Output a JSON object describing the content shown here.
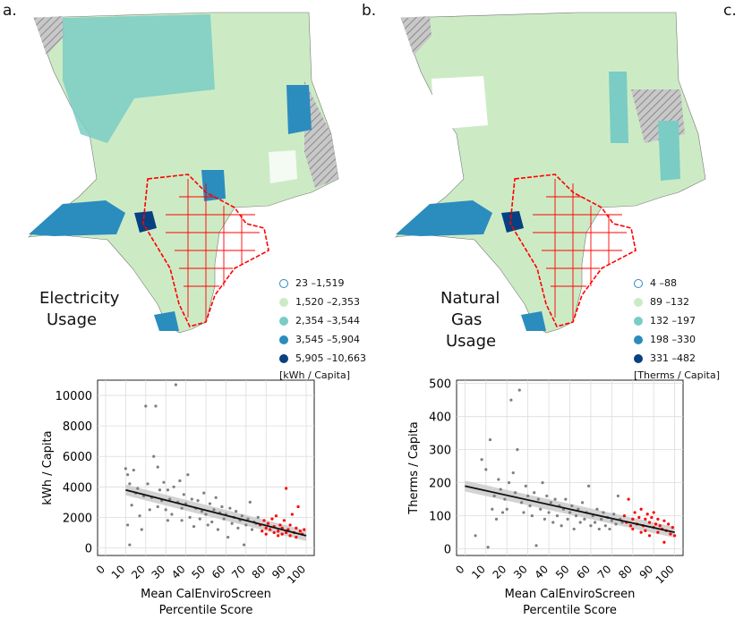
{
  "panels": {
    "a": {
      "letter": "a."
    },
    "b": {
      "letter": "b."
    },
    "c": {
      "letter": "c."
    }
  },
  "maps": [
    {
      "title_line1": "Electricity",
      "title_line2": "Usage",
      "legend": [
        {
          "label": "23 –1,519",
          "color": "#ffffff"
        },
        {
          "label": "1,520 –2,353",
          "color": "#ccebc5"
        },
        {
          "label": "2,354 –3,544",
          "color": "#7bccc4"
        },
        {
          "label": "3,545 –5,904",
          "color": "#2b8cbe"
        },
        {
          "label": "5,905 –10,663",
          "color": "#084081"
        }
      ],
      "unit": "[kWh / Capita]"
    },
    {
      "title_line1": "Natural",
      "title_line2": "Gas",
      "title_line3": "Usage",
      "legend": [
        {
          "label": "4 –88",
          "color": "#ffffff"
        },
        {
          "label": "89 –132",
          "color": "#ccebc5"
        },
        {
          "label": "132 –197",
          "color": "#7bccc4"
        },
        {
          "label": "198 –330",
          "color": "#2b8cbe"
        },
        {
          "label": "331 –482",
          "color": "#084081"
        }
      ],
      "unit": "[Therms / Capita]"
    }
  ],
  "colors": {
    "highlight": "#ff0000",
    "gray_point": "#7f7f7f",
    "fit_line": "#111111",
    "ci_band": "#c8c8c8",
    "nodata": "#b8b8b8"
  },
  "chart_data": [
    {
      "type": "scatter",
      "title": "",
      "xlabel": "Mean CalEnviroScreen Percentile Score",
      "xlabel_line1": "Mean CalEnviroScreen",
      "xlabel_line2": "Percentile Score",
      "ylabel": "kWh / Capita",
      "xlim": [
        -4,
        104
      ],
      "ylim": [
        -500,
        11000
      ],
      "xticks": [
        "0",
        "10",
        "20",
        "30",
        "40",
        "50",
        "60",
        "70",
        "80",
        "90",
        "100"
      ],
      "yticks": [
        "0",
        "2000",
        "4000",
        "6000",
        "8000",
        "10000"
      ],
      "fit_line": {
        "x": [
          10,
          100
        ],
        "y": [
          3800,
          800
        ]
      },
      "series": [
        {
          "name": "communities",
          "color": "#7f7f7f",
          "points": [
            [
              10,
              5200
            ],
            [
              11,
              4800
            ],
            [
              12,
              4200
            ],
            [
              11,
              1500
            ],
            [
              12,
              200
            ],
            [
              13,
              2800
            ],
            [
              14,
              5100
            ],
            [
              15,
              3600
            ],
            [
              16,
              3900
            ],
            [
              17,
              2100
            ],
            [
              18,
              1200
            ],
            [
              19,
              3400
            ],
            [
              20,
              9300
            ],
            [
              21,
              4200
            ],
            [
              22,
              2500
            ],
            [
              23,
              3300
            ],
            [
              24,
              6000
            ],
            [
              25,
              9300
            ],
            [
              26,
              5300
            ],
            [
              26,
              2700
            ],
            [
              27,
              3800
            ],
            [
              28,
              3100
            ],
            [
              29,
              4300
            ],
            [
              30,
              2500
            ],
            [
              31,
              3800
            ],
            [
              31,
              1800
            ],
            [
              32,
              3200
            ],
            [
              33,
              2200
            ],
            [
              34,
              4000
            ],
            [
              35,
              10700
            ],
            [
              36,
              3000
            ],
            [
              37,
              4400
            ],
            [
              38,
              2600
            ],
            [
              38,
              1800
            ],
            [
              39,
              3500
            ],
            [
              40,
              2900
            ],
            [
              41,
              4800
            ],
            [
              42,
              2000
            ],
            [
              43,
              3200
            ],
            [
              44,
              1400
            ],
            [
              45,
              2600
            ],
            [
              46,
              3100
            ],
            [
              47,
              1900
            ],
            [
              48,
              2400
            ],
            [
              49,
              3600
            ],
            [
              50,
              2200
            ],
            [
              51,
              1500
            ],
            [
              52,
              2900
            ],
            [
              53,
              1700
            ],
            [
              54,
              2500
            ],
            [
              55,
              3300
            ],
            [
              56,
              1200
            ],
            [
              57,
              2300
            ],
            [
              58,
              2700
            ],
            [
              59,
              1900
            ],
            [
              60,
              2200
            ],
            [
              61,
              700
            ],
            [
              62,
              2600
            ],
            [
              63,
              1600
            ],
            [
              64,
              2000
            ],
            [
              65,
              2400
            ],
            [
              66,
              1300
            ],
            [
              67,
              1800
            ],
            [
              68,
              2100
            ],
            [
              69,
              200
            ],
            [
              70,
              1500
            ],
            [
              71,
              1900
            ],
            [
              72,
              3000
            ],
            [
              73,
              1200
            ],
            [
              74,
              1700
            ],
            [
              75,
              1600
            ],
            [
              76,
              2000
            ]
          ]
        },
        {
          "name": "disadvantaged",
          "color": "#ff0000",
          "points": [
            [
              77,
              1500
            ],
            [
              78,
              1100
            ],
            [
              79,
              1800
            ],
            [
              80,
              1300
            ],
            [
              80,
              900
            ],
            [
              81,
              1600
            ],
            [
              82,
              1200
            ],
            [
              83,
              1900
            ],
            [
              84,
              1000
            ],
            [
              84,
              1400
            ],
            [
              85,
              2100
            ],
            [
              86,
              1100
            ],
            [
              86,
              800
            ],
            [
              87,
              1500
            ],
            [
              88,
              1300
            ],
            [
              88,
              900
            ],
            [
              89,
              1800
            ],
            [
              90,
              1000
            ],
            [
              90,
              3900
            ],
            [
              91,
              1200
            ],
            [
              92,
              800
            ],
            [
              92,
              1500
            ],
            [
              93,
              2200
            ],
            [
              94,
              1000
            ],
            [
              95,
              1300
            ],
            [
              95,
              700
            ],
            [
              96,
              2700
            ],
            [
              97,
              1100
            ],
            [
              98,
              900
            ],
            [
              99,
              1200
            ]
          ]
        }
      ]
    },
    {
      "type": "scatter",
      "title": "",
      "xlabel": "Mean CalEnviroScreen Percentile Score",
      "xlabel_line1": "Mean CalEnviroScreen",
      "xlabel_line2": "Percentile Score",
      "ylabel": "Therms / Capita",
      "xlim": [
        -4,
        104
      ],
      "ylim": [
        -20,
        510
      ],
      "xticks": [
        "0",
        "10",
        "20",
        "30",
        "40",
        "50",
        "60",
        "70",
        "80",
        "90",
        "100"
      ],
      "yticks": [
        "0",
        "100",
        "200",
        "300",
        "400",
        "500"
      ],
      "fit_line": {
        "x": [
          0,
          100
        ],
        "y": [
          190,
          50
        ]
      },
      "series": [
        {
          "name": "communities",
          "color": "#7f7f7f",
          "points": [
            [
              5,
              40
            ],
            [
              8,
              270
            ],
            [
              10,
              240
            ],
            [
              11,
              5
            ],
            [
              12,
              330
            ],
            [
              13,
              120
            ],
            [
              14,
              160
            ],
            [
              15,
              90
            ],
            [
              16,
              210
            ],
            [
              17,
              180
            ],
            [
              18,
              110
            ],
            [
              19,
              150
            ],
            [
              20,
              120
            ],
            [
              21,
              200
            ],
            [
              22,
              450
            ],
            [
              23,
              230
            ],
            [
              24,
              170
            ],
            [
              25,
              300
            ],
            [
              26,
              480
            ],
            [
              27,
              140
            ],
            [
              28,
              110
            ],
            [
              29,
              190
            ],
            [
              30,
              160
            ],
            [
              31,
              130
            ],
            [
              32,
              100
            ],
            [
              33,
              170
            ],
            [
              34,
              10
            ],
            [
              35,
              150
            ],
            [
              36,
              120
            ],
            [
              37,
              200
            ],
            [
              38,
              90
            ],
            [
              39,
              160
            ],
            [
              40,
              110
            ],
            [
              41,
              140
            ],
            [
              42,
              80
            ],
            [
              43,
              150
            ],
            [
              44,
              100
            ],
            [
              45,
              130
            ],
            [
              46,
              70
            ],
            [
              47,
              120
            ],
            [
              48,
              150
            ],
            [
              49,
              90
            ],
            [
              50,
              110
            ],
            [
              51,
              130
            ],
            [
              52,
              60
            ],
            [
              53,
              100
            ],
            [
              54,
              120
            ],
            [
              55,
              80
            ],
            [
              56,
              140
            ],
            [
              57,
              90
            ],
            [
              58,
              110
            ],
            [
              59,
              190
            ],
            [
              60,
              70
            ],
            [
              61,
              100
            ],
            [
              62,
              80
            ],
            [
              63,
              120
            ],
            [
              64,
              60
            ],
            [
              65,
              90
            ],
            [
              66,
              110
            ],
            [
              67,
              70
            ],
            [
              68,
              95
            ],
            [
              69,
              60
            ],
            [
              70,
              85
            ],
            [
              71,
              105
            ],
            [
              72,
              75
            ],
            [
              73,
              160
            ],
            [
              74,
              90
            ],
            [
              75,
              80
            ]
          ]
        },
        {
          "name": "disadvantaged",
          "color": "#ff0000",
          "points": [
            [
              76,
              100
            ],
            [
              77,
              80
            ],
            [
              78,
              150
            ],
            [
              79,
              70
            ],
            [
              80,
              90
            ],
            [
              80,
              60
            ],
            [
              81,
              110
            ],
            [
              82,
              75
            ],
            [
              83,
              95
            ],
            [
              84,
              50
            ],
            [
              84,
              120
            ],
            [
              85,
              70
            ],
            [
              86,
              90
            ],
            [
              86,
              55
            ],
            [
              87,
              105
            ],
            [
              88,
              80
            ],
            [
              88,
              40
            ],
            [
              89,
              95
            ],
            [
              90,
              65
            ],
            [
              90,
              110
            ],
            [
              91,
              75
            ],
            [
              92,
              50
            ],
            [
              92,
              90
            ],
            [
              93,
              70
            ],
            [
              94,
              60
            ],
            [
              95,
              85
            ],
            [
              95,
              20
            ],
            [
              96,
              55
            ],
            [
              97,
              75
            ],
            [
              98,
              45
            ],
            [
              99,
              65
            ],
            [
              100,
              40
            ]
          ]
        }
      ]
    }
  ]
}
